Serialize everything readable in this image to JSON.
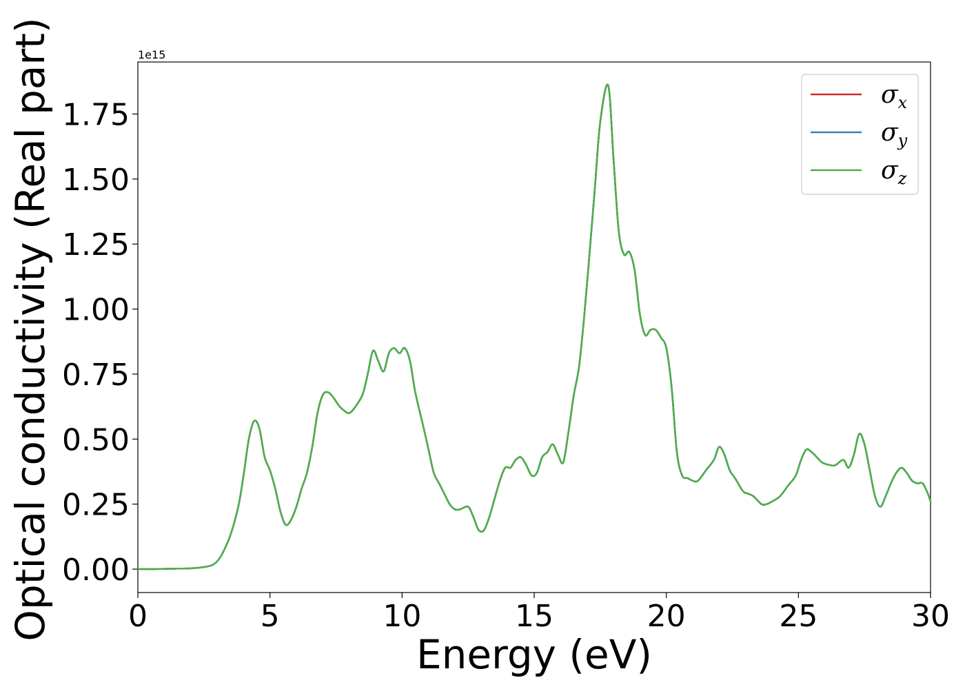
{
  "chart_data": {
    "type": "line",
    "xlabel": "Energy (eV)",
    "ylabel": "Optical conductivity (Real part)",
    "y_offset_label": "1e15",
    "y_scale": 1000000000000000.0,
    "xlim": [
      0,
      30
    ],
    "ylim": [
      -0.09,
      1.95
    ],
    "xticks": [
      0,
      5,
      10,
      15,
      20,
      25,
      30
    ],
    "xtick_labels": [
      "0",
      "5",
      "10",
      "15",
      "20",
      "25",
      "30"
    ],
    "yticks": [
      0.0,
      0.25,
      0.5,
      0.75,
      1.0,
      1.25,
      1.5,
      1.75
    ],
    "ytick_labels": [
      "0.00",
      "0.25",
      "0.50",
      "0.75",
      "1.00",
      "1.25",
      "1.50",
      "1.75"
    ],
    "grid": false,
    "legend_position": "top-right",
    "x": [
      0,
      0.5,
      1,
      1.5,
      2,
      2.5,
      2.8,
      3.0,
      3.2,
      3.5,
      3.8,
      4.0,
      4.2,
      4.4,
      4.6,
      4.8,
      5.0,
      5.2,
      5.4,
      5.6,
      5.8,
      6.0,
      6.2,
      6.4,
      6.6,
      6.8,
      7.0,
      7.2,
      7.4,
      7.6,
      7.8,
      8.0,
      8.2,
      8.5,
      8.7,
      8.9,
      9.1,
      9.3,
      9.5,
      9.7,
      9.9,
      10.1,
      10.3,
      10.5,
      10.8,
      11.0,
      11.2,
      11.4,
      11.6,
      11.8,
      12.0,
      12.2,
      12.5,
      12.7,
      12.9,
      13.1,
      13.3,
      13.5,
      13.7,
      13.9,
      14.1,
      14.3,
      14.5,
      14.7,
      14.9,
      15.1,
      15.3,
      15.5,
      15.7,
      15.9,
      16.1,
      16.3,
      16.5,
      16.7,
      16.9,
      17.1,
      17.3,
      17.5,
      17.8,
      18.0,
      18.2,
      18.4,
      18.6,
      18.8,
      19.0,
      19.2,
      19.4,
      19.6,
      19.8,
      20.0,
      20.2,
      20.4,
      20.6,
      20.8,
      21.0,
      21.2,
      21.5,
      21.8,
      22.0,
      22.2,
      22.4,
      22.6,
      22.9,
      23.1,
      23.3,
      23.6,
      23.8,
      24.0,
      24.3,
      24.6,
      24.9,
      25.1,
      25.3,
      25.5,
      25.7,
      25.9,
      26.2,
      26.4,
      26.7,
      26.9,
      27.1,
      27.3,
      27.5,
      27.7,
      27.9,
      28.1,
      28.3,
      28.5,
      28.7,
      28.9,
      29.1,
      29.3,
      29.5,
      29.7,
      29.9,
      30.0
    ],
    "series": [
      {
        "name": "σx",
        "color": "#d62728",
        "values": [
          0.0,
          0.0,
          0.001,
          0.002,
          0.003,
          0.008,
          0.015,
          0.03,
          0.06,
          0.13,
          0.24,
          0.36,
          0.5,
          0.57,
          0.54,
          0.43,
          0.38,
          0.31,
          0.22,
          0.17,
          0.19,
          0.24,
          0.31,
          0.37,
          0.47,
          0.6,
          0.67,
          0.68,
          0.66,
          0.63,
          0.61,
          0.6,
          0.62,
          0.67,
          0.75,
          0.84,
          0.8,
          0.76,
          0.83,
          0.85,
          0.83,
          0.85,
          0.8,
          0.68,
          0.55,
          0.46,
          0.37,
          0.33,
          0.29,
          0.25,
          0.23,
          0.23,
          0.24,
          0.2,
          0.15,
          0.15,
          0.2,
          0.27,
          0.34,
          0.39,
          0.39,
          0.42,
          0.43,
          0.4,
          0.36,
          0.37,
          0.43,
          0.45,
          0.48,
          0.44,
          0.41,
          0.53,
          0.67,
          0.78,
          0.98,
          1.22,
          1.47,
          1.72,
          1.86,
          1.58,
          1.3,
          1.21,
          1.22,
          1.15,
          0.98,
          0.9,
          0.92,
          0.92,
          0.89,
          0.85,
          0.7,
          0.45,
          0.36,
          0.35,
          0.34,
          0.34,
          0.38,
          0.42,
          0.47,
          0.44,
          0.38,
          0.35,
          0.3,
          0.29,
          0.28,
          0.25,
          0.25,
          0.26,
          0.28,
          0.32,
          0.36,
          0.42,
          0.46,
          0.45,
          0.43,
          0.41,
          0.4,
          0.4,
          0.42,
          0.39,
          0.44,
          0.52,
          0.48,
          0.38,
          0.28,
          0.24,
          0.28,
          0.33,
          0.37,
          0.39,
          0.37,
          0.34,
          0.33,
          0.33,
          0.29,
          0.26
        ]
      },
      {
        "name": "σy",
        "color": "#3c7fb1",
        "values": [
          0.0,
          0.0,
          0.001,
          0.002,
          0.003,
          0.008,
          0.015,
          0.03,
          0.06,
          0.13,
          0.24,
          0.36,
          0.5,
          0.57,
          0.54,
          0.43,
          0.38,
          0.31,
          0.22,
          0.17,
          0.19,
          0.24,
          0.31,
          0.37,
          0.47,
          0.6,
          0.67,
          0.68,
          0.66,
          0.63,
          0.61,
          0.6,
          0.62,
          0.67,
          0.75,
          0.84,
          0.8,
          0.76,
          0.83,
          0.85,
          0.83,
          0.85,
          0.8,
          0.68,
          0.55,
          0.46,
          0.37,
          0.33,
          0.29,
          0.25,
          0.23,
          0.23,
          0.24,
          0.2,
          0.15,
          0.15,
          0.2,
          0.27,
          0.34,
          0.39,
          0.39,
          0.42,
          0.43,
          0.4,
          0.36,
          0.37,
          0.43,
          0.45,
          0.48,
          0.44,
          0.41,
          0.53,
          0.67,
          0.78,
          0.98,
          1.22,
          1.47,
          1.72,
          1.86,
          1.58,
          1.3,
          1.21,
          1.22,
          1.15,
          0.98,
          0.9,
          0.92,
          0.92,
          0.89,
          0.85,
          0.7,
          0.45,
          0.36,
          0.35,
          0.34,
          0.34,
          0.38,
          0.42,
          0.47,
          0.44,
          0.38,
          0.35,
          0.3,
          0.29,
          0.28,
          0.25,
          0.25,
          0.26,
          0.28,
          0.32,
          0.36,
          0.42,
          0.46,
          0.45,
          0.43,
          0.41,
          0.4,
          0.4,
          0.42,
          0.39,
          0.44,
          0.52,
          0.48,
          0.38,
          0.28,
          0.24,
          0.28,
          0.33,
          0.37,
          0.39,
          0.37,
          0.34,
          0.33,
          0.33,
          0.29,
          0.26
        ]
      },
      {
        "name": "σz",
        "color": "#4daf4a",
        "values": [
          0.0,
          0.0,
          0.001,
          0.002,
          0.003,
          0.008,
          0.015,
          0.03,
          0.06,
          0.13,
          0.24,
          0.36,
          0.5,
          0.57,
          0.54,
          0.43,
          0.38,
          0.31,
          0.22,
          0.17,
          0.19,
          0.24,
          0.31,
          0.37,
          0.47,
          0.6,
          0.67,
          0.68,
          0.66,
          0.63,
          0.61,
          0.6,
          0.62,
          0.67,
          0.75,
          0.84,
          0.8,
          0.76,
          0.83,
          0.85,
          0.83,
          0.85,
          0.8,
          0.68,
          0.55,
          0.46,
          0.37,
          0.33,
          0.29,
          0.25,
          0.23,
          0.23,
          0.24,
          0.2,
          0.15,
          0.15,
          0.2,
          0.27,
          0.34,
          0.39,
          0.39,
          0.42,
          0.43,
          0.4,
          0.36,
          0.37,
          0.43,
          0.45,
          0.48,
          0.44,
          0.41,
          0.53,
          0.67,
          0.78,
          0.98,
          1.22,
          1.47,
          1.72,
          1.86,
          1.58,
          1.3,
          1.21,
          1.22,
          1.15,
          0.98,
          0.9,
          0.92,
          0.92,
          0.89,
          0.85,
          0.7,
          0.45,
          0.36,
          0.35,
          0.34,
          0.34,
          0.38,
          0.42,
          0.47,
          0.44,
          0.38,
          0.35,
          0.3,
          0.29,
          0.28,
          0.25,
          0.25,
          0.26,
          0.28,
          0.32,
          0.36,
          0.42,
          0.46,
          0.45,
          0.43,
          0.41,
          0.4,
          0.4,
          0.42,
          0.39,
          0.44,
          0.52,
          0.48,
          0.38,
          0.28,
          0.24,
          0.28,
          0.33,
          0.37,
          0.39,
          0.37,
          0.34,
          0.33,
          0.33,
          0.29,
          0.26
        ]
      }
    ],
    "legend": [
      {
        "symbol": "σ",
        "subscript": "x",
        "color": "#d62728"
      },
      {
        "symbol": "σ",
        "subscript": "y",
        "color": "#3c7fb1"
      },
      {
        "symbol": "σ",
        "subscript": "z",
        "color": "#4daf4a"
      }
    ]
  }
}
